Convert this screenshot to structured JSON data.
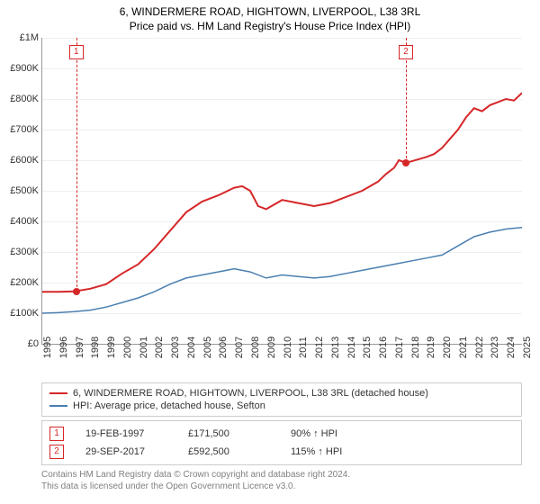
{
  "title": "6, WINDERMERE ROAD, HIGHTOWN, LIVERPOOL, L38 3RL",
  "subtitle": "Price paid vs. HM Land Registry's House Price Index (HPI)",
  "chart": {
    "type": "line",
    "background_color": "#ffffff",
    "grid_color": "#efefef",
    "axis_color": "#999999",
    "label_color": "#333333",
    "label_fontsize": 11,
    "ylim": [
      0,
      1000000
    ],
    "ytick_step": 100000,
    "y_labels": [
      "£0",
      "£100K",
      "£200K",
      "£300K",
      "£400K",
      "£500K",
      "£600K",
      "£700K",
      "£800K",
      "£900K",
      "£1M"
    ],
    "xlim": [
      1995,
      2025
    ],
    "x_labels": [
      "1995",
      "1996",
      "1997",
      "1998",
      "1999",
      "2000",
      "2001",
      "2002",
      "2003",
      "2004",
      "2005",
      "2006",
      "2007",
      "2008",
      "2009",
      "2010",
      "2011",
      "2012",
      "2013",
      "2014",
      "2015",
      "2016",
      "2017",
      "2018",
      "2019",
      "2020",
      "2021",
      "2022",
      "2023",
      "2024",
      "2025"
    ],
    "series": [
      {
        "name": "price_paid",
        "color": "#d62728",
        "line_width": 2,
        "points": [
          [
            1995,
            170000
          ],
          [
            1996,
            170000
          ],
          [
            1997,
            171500
          ],
          [
            1998,
            180000
          ],
          [
            1999,
            195000
          ],
          [
            2000,
            230000
          ],
          [
            2001,
            260000
          ],
          [
            2002,
            310000
          ],
          [
            2003,
            370000
          ],
          [
            2004,
            430000
          ],
          [
            2005,
            465000
          ],
          [
            2006,
            485000
          ],
          [
            2007,
            510000
          ],
          [
            2007.5,
            515000
          ],
          [
            2008,
            500000
          ],
          [
            2008.5,
            450000
          ],
          [
            2009,
            440000
          ],
          [
            2010,
            470000
          ],
          [
            2011,
            460000
          ],
          [
            2012,
            450000
          ],
          [
            2013,
            460000
          ],
          [
            2014,
            480000
          ],
          [
            2015,
            500000
          ],
          [
            2016,
            530000
          ],
          [
            2016.5,
            555000
          ],
          [
            2017,
            575000
          ],
          [
            2017.3,
            600000
          ],
          [
            2017.7,
            592500
          ],
          [
            2018,
            595000
          ],
          [
            2019,
            610000
          ],
          [
            2019.5,
            620000
          ],
          [
            2020,
            640000
          ],
          [
            2020.5,
            670000
          ],
          [
            2021,
            700000
          ],
          [
            2021.5,
            740000
          ],
          [
            2022,
            770000
          ],
          [
            2022.5,
            760000
          ],
          [
            2023,
            780000
          ],
          [
            2023.5,
            790000
          ],
          [
            2024,
            800000
          ],
          [
            2024.5,
            795000
          ],
          [
            2025,
            820000
          ]
        ]
      },
      {
        "name": "hpi",
        "color": "#4a7fb0",
        "line_width": 1.5,
        "points": [
          [
            1995,
            100000
          ],
          [
            1996,
            102000
          ],
          [
            1997,
            105000
          ],
          [
            1998,
            110000
          ],
          [
            1999,
            120000
          ],
          [
            2000,
            135000
          ],
          [
            2001,
            150000
          ],
          [
            2002,
            170000
          ],
          [
            2003,
            195000
          ],
          [
            2004,
            215000
          ],
          [
            2005,
            225000
          ],
          [
            2006,
            235000
          ],
          [
            2007,
            245000
          ],
          [
            2008,
            235000
          ],
          [
            2009,
            215000
          ],
          [
            2010,
            225000
          ],
          [
            2011,
            220000
          ],
          [
            2012,
            215000
          ],
          [
            2013,
            220000
          ],
          [
            2014,
            230000
          ],
          [
            2015,
            240000
          ],
          [
            2016,
            250000
          ],
          [
            2017,
            260000
          ],
          [
            2018,
            270000
          ],
          [
            2019,
            280000
          ],
          [
            2020,
            290000
          ],
          [
            2021,
            320000
          ],
          [
            2022,
            350000
          ],
          [
            2023,
            365000
          ],
          [
            2024,
            375000
          ],
          [
            2025,
            380000
          ]
        ]
      }
    ],
    "markers": [
      {
        "num": "1",
        "x": 1997.13,
        "y": 171500
      },
      {
        "num": "2",
        "x": 2017.74,
        "y": 592500
      }
    ]
  },
  "legend": {
    "items": [
      {
        "color": "#d62728",
        "label": "6, WINDERMERE ROAD, HIGHTOWN, LIVERPOOL, L38 3RL (detached house)"
      },
      {
        "color": "#4a7fb0",
        "label": "HPI: Average price, detached house, Sefton"
      }
    ]
  },
  "sales": [
    {
      "num": "1",
      "date": "19-FEB-1997",
      "price": "£171,500",
      "pct": "90% ↑ HPI"
    },
    {
      "num": "2",
      "date": "29-SEP-2017",
      "price": "£592,500",
      "pct": "115% ↑ HPI"
    }
  ],
  "footer": {
    "line1": "Contains HM Land Registry data © Crown copyright and database right 2024.",
    "line2": "This data is licensed under the Open Government Licence v3.0."
  }
}
